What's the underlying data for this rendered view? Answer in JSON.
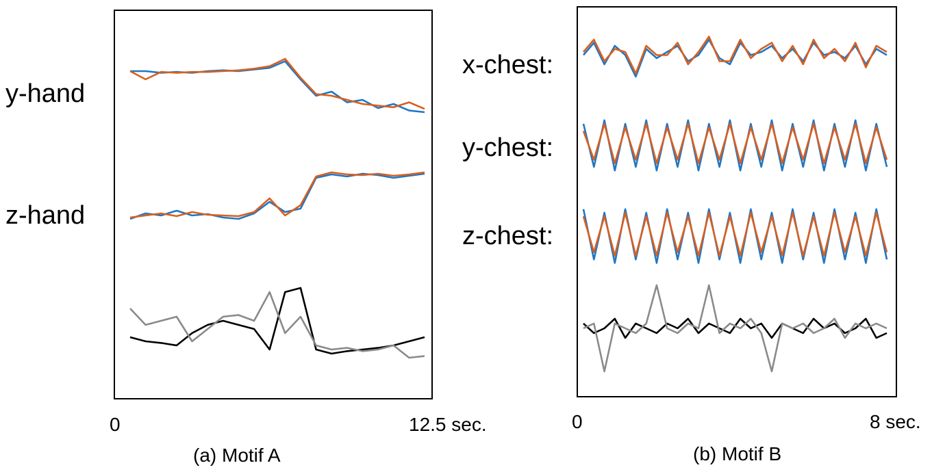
{
  "figure": {
    "colors": {
      "series_blue": "#1f77c4",
      "series_orange": "#d95f1f",
      "black": "#000000",
      "gray": "#8a8a8a"
    }
  },
  "chart_data": [
    {
      "type": "line",
      "caption": "(a) Motif A",
      "x_start_label": "0",
      "x_end_label": "12.5 sec.",
      "xlim": [
        0,
        12.5
      ],
      "signals": [
        {
          "label": "y-hand",
          "series": [
            {
              "color": "blue",
              "values": [
                0.8,
                0.8,
                0.78,
                0.79,
                0.78,
                0.8,
                0.81,
                0.8,
                0.82,
                0.84,
                0.92,
                0.7,
                0.5,
                0.55,
                0.42,
                0.45,
                0.35,
                0.4,
                0.32,
                0.3
              ]
            },
            {
              "color": "orange",
              "values": [
                0.8,
                0.7,
                0.79,
                0.78,
                0.79,
                0.79,
                0.8,
                0.81,
                0.83,
                0.86,
                0.95,
                0.72,
                0.52,
                0.5,
                0.45,
                0.4,
                0.38,
                0.36,
                0.42,
                0.34
              ]
            }
          ]
        },
        {
          "label": "z-hand",
          "series": [
            {
              "color": "blue",
              "values": [
                0.2,
                0.28,
                0.25,
                0.32,
                0.25,
                0.27,
                0.22,
                0.2,
                0.28,
                0.45,
                0.3,
                0.35,
                0.8,
                0.85,
                0.82,
                0.86,
                0.84,
                0.8,
                0.83,
                0.86
              ]
            },
            {
              "color": "orange",
              "values": [
                0.22,
                0.25,
                0.28,
                0.24,
                0.3,
                0.26,
                0.25,
                0.24,
                0.3,
                0.5,
                0.25,
                0.4,
                0.82,
                0.88,
                0.85,
                0.84,
                0.86,
                0.83,
                0.85,
                0.88
              ]
            }
          ]
        },
        {
          "label": "",
          "series": [
            {
              "color": "black",
              "values": [
                0.35,
                0.3,
                0.28,
                0.25,
                0.4,
                0.5,
                0.55,
                0.5,
                0.45,
                0.2,
                0.9,
                0.95,
                0.2,
                0.15,
                0.18,
                0.2,
                0.22,
                0.25,
                0.3,
                0.35
              ]
            },
            {
              "color": "gray",
              "values": [
                0.7,
                0.5,
                0.55,
                0.6,
                0.3,
                0.45,
                0.6,
                0.62,
                0.55,
                0.9,
                0.4,
                0.6,
                0.25,
                0.2,
                0.22,
                0.18,
                0.2,
                0.25,
                0.1,
                0.12
              ]
            }
          ]
        }
      ]
    },
    {
      "type": "line",
      "caption": "(b) Motif B",
      "x_start_label": "0",
      "x_end_label": "8 sec.",
      "xlim": [
        0,
        8
      ],
      "signals": [
        {
          "label": "x-chest:",
          "series": [
            {
              "color": "blue",
              "values": [
                0.55,
                0.75,
                0.4,
                0.7,
                0.55,
                0.2,
                0.65,
                0.5,
                0.6,
                0.7,
                0.45,
                0.55,
                0.8,
                0.5,
                0.4,
                0.75,
                0.55,
                0.6,
                0.7,
                0.5,
                0.65,
                0.45,
                0.75,
                0.55,
                0.6,
                0.5,
                0.7,
                0.4,
                0.65,
                0.55
              ]
            },
            {
              "color": "orange",
              "values": [
                0.6,
                0.8,
                0.45,
                0.65,
                0.6,
                0.25,
                0.7,
                0.55,
                0.55,
                0.75,
                0.4,
                0.6,
                0.85,
                0.45,
                0.45,
                0.8,
                0.5,
                0.65,
                0.75,
                0.45,
                0.7,
                0.4,
                0.8,
                0.5,
                0.65,
                0.45,
                0.75,
                0.35,
                0.7,
                0.6
              ]
            }
          ]
        },
        {
          "label": "y-chest:",
          "series": [
            {
              "color": "blue",
              "values": [
                0.8,
                0.2,
                0.85,
                0.15,
                0.8,
                0.2,
                0.85,
                0.15,
                0.8,
                0.2,
                0.85,
                0.15,
                0.8,
                0.2,
                0.85,
                0.15,
                0.8,
                0.2,
                0.85,
                0.15,
                0.8,
                0.2,
                0.85,
                0.15,
                0.8,
                0.2,
                0.85,
                0.15,
                0.8,
                0.2
              ]
            },
            {
              "color": "orange",
              "values": [
                0.7,
                0.3,
                0.8,
                0.25,
                0.75,
                0.3,
                0.8,
                0.25,
                0.75,
                0.3,
                0.8,
                0.25,
                0.75,
                0.3,
                0.8,
                0.25,
                0.75,
                0.3,
                0.8,
                0.25,
                0.75,
                0.3,
                0.8,
                0.25,
                0.75,
                0.3,
                0.8,
                0.25,
                0.75,
                0.3
              ]
            }
          ]
        },
        {
          "label": "z-chest:",
          "series": [
            {
              "color": "blue",
              "values": [
                0.85,
                0.15,
                0.8,
                0.1,
                0.85,
                0.15,
                0.8,
                0.1,
                0.85,
                0.15,
                0.8,
                0.1,
                0.85,
                0.15,
                0.8,
                0.1,
                0.85,
                0.15,
                0.8,
                0.1,
                0.85,
                0.15,
                0.8,
                0.1,
                0.85,
                0.15,
                0.8,
                0.1,
                0.85,
                0.15
              ]
            },
            {
              "color": "orange",
              "values": [
                0.75,
                0.25,
                0.75,
                0.2,
                0.8,
                0.2,
                0.75,
                0.2,
                0.8,
                0.25,
                0.75,
                0.2,
                0.8,
                0.2,
                0.75,
                0.2,
                0.8,
                0.25,
                0.75,
                0.2,
                0.8,
                0.2,
                0.75,
                0.2,
                0.8,
                0.25,
                0.75,
                0.2,
                0.8,
                0.25
              ]
            }
          ]
        },
        {
          "label": "",
          "series": [
            {
              "color": "black",
              "values": [
                0.55,
                0.45,
                0.5,
                0.6,
                0.4,
                0.55,
                0.5,
                0.45,
                0.55,
                0.5,
                0.6,
                0.45,
                0.55,
                0.5,
                0.45,
                0.6,
                0.5,
                0.55,
                0.4,
                0.55,
                0.5,
                0.45,
                0.6,
                0.5,
                0.55,
                0.45,
                0.5,
                0.6,
                0.4,
                0.45
              ]
            },
            {
              "color": "gray",
              "values": [
                0.5,
                0.55,
                0.05,
                0.55,
                0.5,
                0.45,
                0.55,
                0.95,
                0.5,
                0.45,
                0.55,
                0.5,
                0.95,
                0.45,
                0.55,
                0.5,
                0.6,
                0.45,
                0.05,
                0.55,
                0.5,
                0.55,
                0.45,
                0.5,
                0.6,
                0.4,
                0.55,
                0.5,
                0.55,
                0.5
              ]
            }
          ]
        }
      ]
    }
  ]
}
